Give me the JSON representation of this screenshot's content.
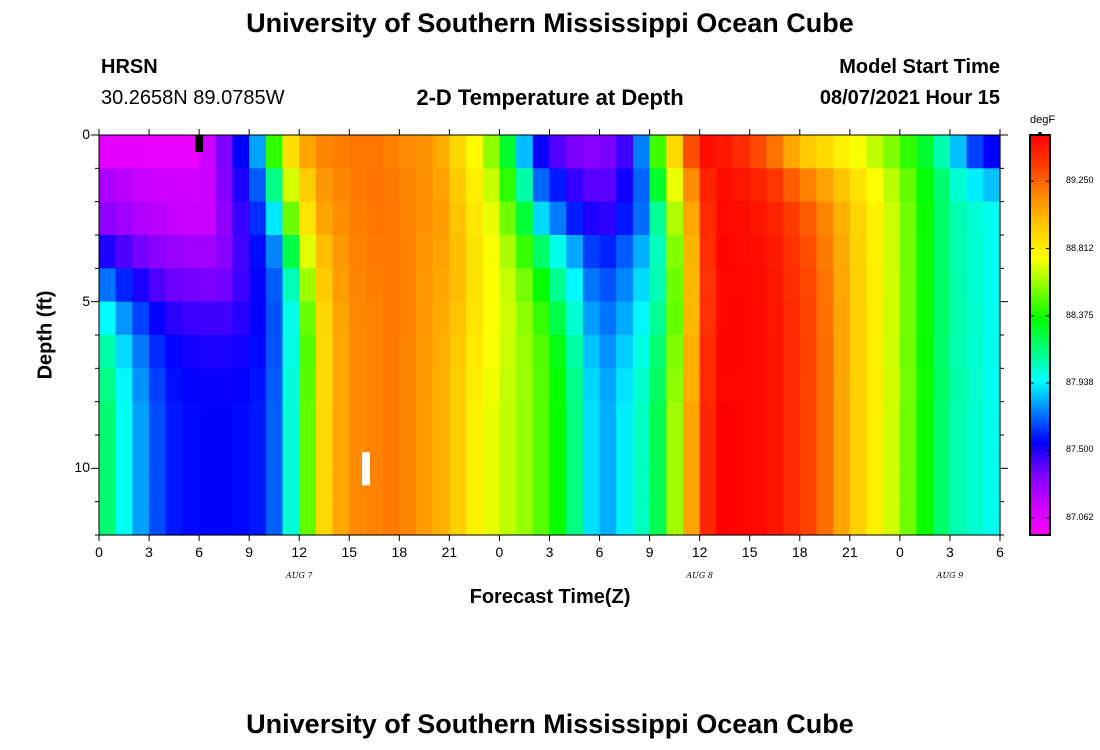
{
  "header": {
    "title": "University of Southern Mississippi Ocean Cube",
    "station": "HRSN",
    "coords": "30.2658N  89.0785W",
    "subtitle": "2-D Temperature at Depth",
    "model_start_label": "Model Start Time",
    "model_start_value": "08/07/2021 Hour 15"
  },
  "footer": {
    "title": "University of Southern Mississippi Ocean Cube"
  },
  "chart_data": {
    "type": "heatmap",
    "title": "2-D Temperature at Depth",
    "xlabel": "Forecast Time(Z)",
    "ylabel": "Depth (ft)",
    "x_tick_labels": [
      "0",
      "3",
      "6",
      "9",
      "12",
      "15",
      "18",
      "21",
      "0",
      "3",
      "6",
      "9",
      "12",
      "15",
      "18",
      "21",
      "0",
      "3",
      "6"
    ],
    "x_date_labels": [
      "AUG 7",
      "AUG 8",
      "AUG 9"
    ],
    "y_tick_labels": [
      "0",
      "5",
      "10"
    ],
    "xlim_hours": [
      0,
      54
    ],
    "ylim_ft": [
      0,
      12
    ],
    "x_step_hours": 1,
    "depth_levels_ft": [
      0.5,
      1.5,
      2.5,
      3.5,
      4.5,
      5.5,
      6.5,
      7.5,
      8.5,
      9.5,
      10.5,
      11.5
    ],
    "colorbar": {
      "unit": "degF",
      "tick_labels": [
        "89.250",
        "88.812",
        "88.375",
        "87.938",
        "87.500",
        "87.062"
      ],
      "tick_values": [
        89.25,
        88.812,
        88.375,
        87.938,
        87.5,
        87.062
      ],
      "range": [
        86.95,
        89.55
      ],
      "colors": [
        "#ff00ff",
        "#c800ff",
        "#7a00ff",
        "#0000ff",
        "#0080ff",
        "#00ffff",
        "#00ff80",
        "#00ff00",
        "#80ff00",
        "#ffff00",
        "#ffcc00",
        "#ff8c00",
        "#ff3c00",
        "#ff0000"
      ]
    },
    "temperature_model": {
      "description": "Cells are 1 hour by 1 ft, reconstructed temperature (degF) per hour and depth from the image",
      "surface_keyframes": [
        [
          0,
          87.05
        ],
        [
          6,
          87.02
        ],
        [
          8,
          87.45
        ],
        [
          9,
          87.65
        ],
        [
          9.8,
          87.9
        ],
        [
          10.3,
          88.3
        ],
        [
          11,
          88.75
        ],
        [
          12,
          89.0
        ],
        [
          13,
          89.15
        ],
        [
          16,
          89.22
        ],
        [
          20,
          89.12
        ],
        [
          23,
          88.7
        ],
        [
          24,
          88.45
        ],
        [
          25,
          88.1
        ],
        [
          26,
          87.6
        ],
        [
          28,
          87.35
        ],
        [
          30,
          87.3
        ],
        [
          32,
          87.5
        ],
        [
          32.7,
          87.85
        ],
        [
          33.2,
          88.3
        ],
        [
          33.8,
          88.6
        ],
        [
          34.5,
          88.9
        ],
        [
          35.5,
          89.3
        ],
        [
          36.5,
          89.5
        ],
        [
          38,
          89.45
        ],
        [
          40,
          89.28
        ],
        [
          42,
          89.0
        ],
        [
          44,
          88.85
        ],
        [
          46,
          88.7
        ],
        [
          48,
          88.5
        ],
        [
          50,
          88.2
        ],
        [
          51,
          87.95
        ],
        [
          52.5,
          87.65
        ],
        [
          54,
          87.5
        ]
      ],
      "bottom_keyframes": [
        [
          0,
          88.3
        ],
        [
          1,
          88.05
        ],
        [
          2.5,
          87.8
        ],
        [
          4,
          87.6
        ],
        [
          6,
          87.55
        ],
        [
          8,
          87.55
        ],
        [
          10,
          87.6
        ],
        [
          11,
          87.8
        ],
        [
          11.7,
          88.1
        ],
        [
          12.5,
          88.5
        ],
        [
          13.5,
          88.9
        ],
        [
          15,
          89.15
        ],
        [
          18,
          89.2
        ],
        [
          21,
          89.0
        ],
        [
          23,
          88.75
        ],
        [
          26,
          88.55
        ],
        [
          28,
          88.3
        ],
        [
          29,
          88.0
        ],
        [
          30,
          87.8
        ],
        [
          31,
          87.85
        ],
        [
          32,
          88.0
        ],
        [
          33,
          88.1
        ],
        [
          34,
          88.35
        ],
        [
          35,
          88.85
        ],
        [
          36,
          89.3
        ],
        [
          37,
          89.55
        ],
        [
          40,
          89.52
        ],
        [
          43,
          89.3
        ],
        [
          45,
          89.0
        ],
        [
          47,
          88.75
        ],
        [
          49,
          88.45
        ],
        [
          51,
          88.1
        ],
        [
          53,
          88.0
        ],
        [
          54,
          87.95
        ]
      ],
      "depth_blend": [
        [
          [
            0,
            1.0
          ]
        ],
        [
          [
            0,
            0.85
          ],
          [
            30,
            0.85
          ],
          [
            40,
            0.5
          ],
          [
            54,
            0.3
          ]
        ],
        [
          [
            0,
            0.78
          ],
          [
            30,
            0.7
          ],
          [
            40,
            0.25
          ],
          [
            54,
            0.0
          ]
        ],
        [
          [
            0,
            0.6
          ],
          [
            30,
            0.45
          ],
          [
            40,
            0.15
          ],
          [
            54,
            0.0
          ]
        ],
        [
          [
            0,
            0.4
          ],
          [
            30,
            0.3
          ],
          [
            40,
            0.08
          ],
          [
            54,
            0.0
          ]
        ],
        [
          [
            0,
            0.2
          ],
          [
            30,
            0.2
          ],
          [
            40,
            0.04
          ],
          [
            54,
            0.0
          ]
        ],
        [
          [
            0,
            0.08
          ],
          [
            30,
            0.1
          ],
          [
            40,
            0.0
          ],
          [
            54,
            0.0
          ]
        ],
        [
          [
            0,
            0.03
          ]
        ],
        [
          [
            0,
            0.0
          ]
        ],
        [
          [
            0,
            0.0
          ]
        ],
        [
          [
            0,
            0.0
          ]
        ],
        [
          [
            0,
            0.0
          ]
        ]
      ],
      "depth_shift_hours": [
        0,
        0.3,
        0.6,
        1.0,
        1.4,
        1.8,
        2.2,
        2.5,
        2.7,
        2.9,
        3.0,
        3.1
      ]
    },
    "markers": [
      {
        "hour": 6,
        "depth_ft": 0,
        "color": "#000000"
      },
      {
        "hour": 16,
        "depth_ft": 10,
        "color": "#ffffff"
      }
    ]
  }
}
